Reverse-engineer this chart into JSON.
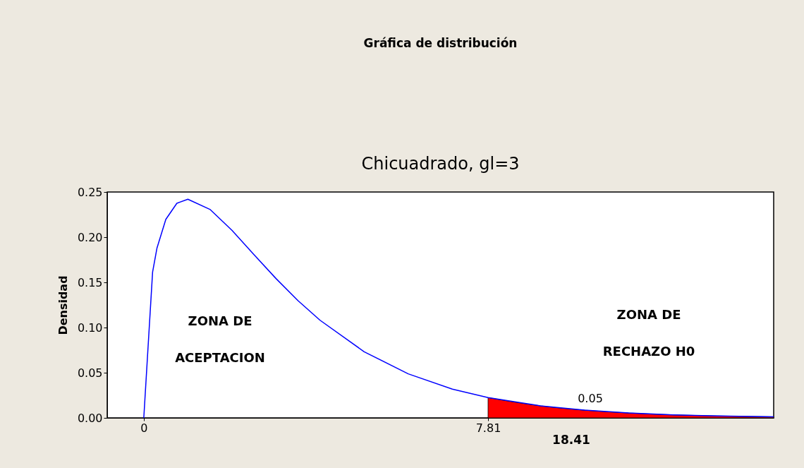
{
  "chart_data": {
    "type": "line",
    "title": "Gráfica de distribución",
    "subtitle": "Chicuadrado, gl=3",
    "ylabel": "Densidad",
    "xlim": [
      -0.83,
      14.29
    ],
    "xticks": [
      0,
      7.81
    ],
    "ylim": [
      0,
      0.25
    ],
    "yticks": [
      {
        "value": 0,
        "label": "0.00"
      },
      {
        "value": 0.05,
        "label": "0.05"
      },
      {
        "value": 0.1,
        "label": "0.10"
      },
      {
        "value": 0.15,
        "label": "0.15"
      },
      {
        "value": 0.2,
        "label": "0.20"
      },
      {
        "value": 0.25,
        "label": "0.25"
      }
    ],
    "grid": false,
    "series": [
      {
        "type": "area",
        "color": "#ff0000",
        "x": [
          7.81,
          9,
          10,
          11,
          12,
          13,
          14.29
        ],
        "values": [
          0.0224,
          0.0133,
          0.0085,
          0.0054,
          0.0034,
          0.0022,
          0.0012
        ]
      },
      {
        "color": "#0000ff",
        "x": [
          0,
          0.2,
          0.3,
          0.5,
          0.75,
          1,
          1.5,
          2,
          2.5,
          3,
          3.5,
          4,
          5,
          6,
          7,
          7.81,
          9,
          10,
          11,
          12,
          13,
          14.29
        ],
        "values": [
          0,
          0.1614,
          0.1881,
          0.2197,
          0.2375,
          0.242,
          0.2308,
          0.2076,
          0.1807,
          0.1542,
          0.1297,
          0.108,
          0.0732,
          0.0487,
          0.0319,
          0.0224,
          0.0133,
          0.0085,
          0.0054,
          0.0034,
          0.0022,
          0.0012
        ]
      }
    ],
    "annotations": [
      "ZONA DE",
      "ACEPTACION",
      "ZONA DE",
      "RECHAZO H0",
      "0.05",
      "18.41"
    ]
  }
}
